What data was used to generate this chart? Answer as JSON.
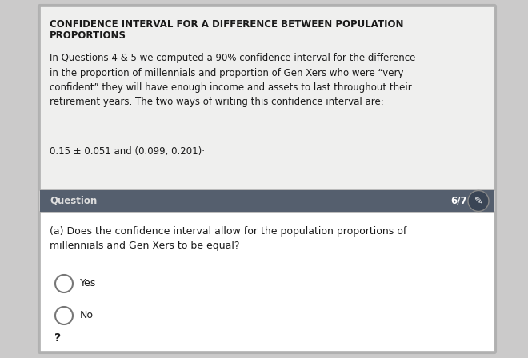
{
  "title_line1": "CONFIDENCE INTERVAL FOR A DIFFERENCE BETWEEN POPULATION",
  "title_line2": "PROPORTIONS",
  "body_text": "In Questions 4 & 5 we computed a 90% confidence interval for the difference\nin the proportion of millennials and proportion of Gen Xers who were “very\nconfident” they will have enough income and assets to last throughout their\nretirement years. The two ways of writing this confidence interval are:",
  "formula_text": "0.15 ± 0.051 and (0.099, 0.201)·",
  "question_label": "Question",
  "page_indicator": "6/7",
  "question_text": "(a) Does the confidence interval allow for the population proportions of\nmillennials and Gen Xers to be equal?",
  "option_yes": "Yes",
  "option_no": "No",
  "question_mark": "?",
  "bg_outer": "#cbcaca",
  "bg_top_card": "#efefee",
  "bg_bottom_card": "#ffffff",
  "bg_question_bar": "#555f6e",
  "text_dark": "#1a1a1a",
  "text_light": "#dddddd",
  "text_white": "#ffffff",
  "radio_edge": "#777777",
  "card_edge": "#b0b0b0",
  "title_fontsize": 8.5,
  "body_fontsize": 8.5,
  "bar_fontsize": 8.5,
  "question_fontsize": 9.0,
  "radio_fontsize": 9.0
}
